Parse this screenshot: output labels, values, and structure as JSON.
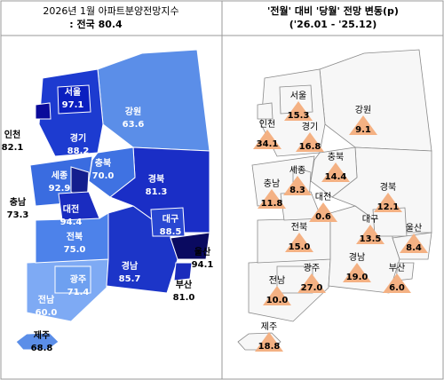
{
  "left_panel": {
    "title": "2026년  1월  아파트분양전망지수",
    "subtitle": ": 전국  80.4",
    "regions": [
      {
        "name": "서울",
        "value": "97.1",
        "color": "#0b1fc0"
      },
      {
        "name": "인천",
        "value": "82.1",
        "color": "#0a0a9a"
      },
      {
        "name": "경기",
        "value": "88.2",
        "color": "#1d3bd0"
      },
      {
        "name": "강원",
        "value": "63.6",
        "color": "#5b8ee8"
      },
      {
        "name": "충북",
        "value": "70.0",
        "color": "#3f72e2"
      },
      {
        "name": "세종",
        "value": "92.9",
        "color": "#141f8e"
      },
      {
        "name": "충남",
        "value": "73.3",
        "color": "#3a6ce0"
      },
      {
        "name": "대전",
        "value": "94.4",
        "color": "#1a2cc0"
      },
      {
        "name": "경북",
        "value": "81.3",
        "color": "#1a2ec6"
      },
      {
        "name": "대구",
        "value": "88.5",
        "color": "#2947d2"
      },
      {
        "name": "울산",
        "value": "94.1",
        "color": "#0a0a60"
      },
      {
        "name": "전북",
        "value": "75.0",
        "color": "#4d82ea"
      },
      {
        "name": "경남",
        "value": "85.7",
        "color": "#1c35c8"
      },
      {
        "name": "부산",
        "value": "81.0",
        "color": "#1a2cbc"
      },
      {
        "name": "광주",
        "value": "71.4",
        "color": "#6ea0f0"
      },
      {
        "name": "전남",
        "value": "60.0",
        "color": "#7eaaf4"
      },
      {
        "name": "제주",
        "value": "68.8",
        "color": "#5b8ee8"
      }
    ]
  },
  "right_panel": {
    "title": "'전월' 대비 '당월' 전망 변동(p)",
    "subtitle": "('26.01  -  '25.12)",
    "regions": [
      {
        "name": "서울",
        "value": "15.3"
      },
      {
        "name": "인천",
        "value": "34.1"
      },
      {
        "name": "경기",
        "value": "16.8"
      },
      {
        "name": "강원",
        "value": "9.1"
      },
      {
        "name": "충북",
        "value": "14.4"
      },
      {
        "name": "세종",
        "value": "8.3"
      },
      {
        "name": "충남",
        "value": "11.8"
      },
      {
        "name": "대전",
        "value": "0.6"
      },
      {
        "name": "경북",
        "value": "12.1"
      },
      {
        "name": "대구",
        "value": "13.5"
      },
      {
        "name": "울산",
        "value": "8.4"
      },
      {
        "name": "전북",
        "value": "15.0"
      },
      {
        "name": "경남",
        "value": "19.0"
      },
      {
        "name": "부산",
        "value": "6.0"
      },
      {
        "name": "광주",
        "value": "27.0"
      },
      {
        "name": "전남",
        "value": "10.0"
      },
      {
        "name": "제주",
        "value": "18.8"
      }
    ]
  }
}
